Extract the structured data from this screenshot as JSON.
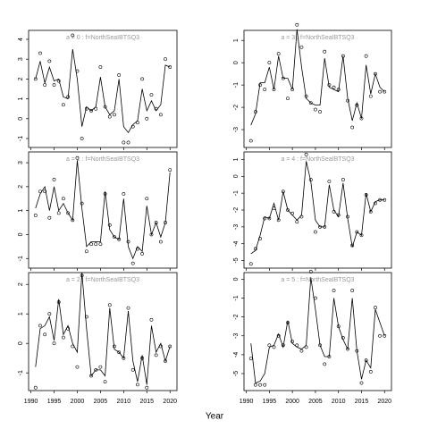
{
  "xlabel": "Year",
  "chart_data": [
    {
      "type": "scatter-line",
      "title": "a = 0 : f=NorthSeaIBTSQ3",
      "x": [
        1991,
        1992,
        1993,
        1994,
        1995,
        1996,
        1997,
        1998,
        1999,
        2000,
        2001,
        2002,
        2003,
        2004,
        2005,
        2006,
        2007,
        2008,
        2009,
        2010,
        2011,
        2012,
        2013,
        2014,
        2015,
        2016,
        2017,
        2018,
        2019,
        2020
      ],
      "series": [
        {
          "marker": "circle",
          "color": "#000000",
          "values": [
            2.0,
            3.3,
            1.7,
            2.9,
            1.7,
            1.9,
            0.7,
            1.1,
            4.2,
            2.4,
            -1.0,
            0.5,
            0.4,
            0.5,
            2.6,
            0.6,
            0.1,
            0.2,
            2.2,
            -1.2,
            -1.2,
            -0.4,
            -0.2,
            2.0,
            0.0,
            1.2,
            0.5,
            0.2,
            3.0,
            2.6
          ]
        },
        {
          "marker": "line",
          "color": "#000000",
          "values": [
            2.0,
            2.9,
            1.8,
            2.6,
            1.9,
            2.0,
            1.1,
            1.0,
            3.5,
            2.0,
            -0.4,
            0.6,
            0.4,
            0.6,
            2.1,
            0.6,
            0.2,
            0.4,
            2.0,
            -0.4,
            -0.7,
            -0.3,
            -0.1,
            1.5,
            0.4,
            0.9,
            0.4,
            0.7,
            2.7,
            2.6
          ]
        }
      ],
      "xlim": [
        1989.5,
        2021.5
      ],
      "xticks": [
        1990,
        1995,
        2000,
        2005,
        2010,
        2015,
        2020
      ],
      "ylim": [
        -1.45,
        4.45
      ],
      "yticks": [
        -1,
        0,
        1,
        2,
        3,
        4
      ]
    },
    {
      "type": "scatter-line",
      "title": "a = 3 : f=NorthSeaIBTSQ3",
      "x": [
        1991,
        1992,
        1993,
        1994,
        1995,
        1996,
        1997,
        1998,
        1999,
        2000,
        2001,
        2002,
        2003,
        2004,
        2005,
        2006,
        2007,
        2008,
        2009,
        2010,
        2011,
        2012,
        2013,
        2014,
        2015,
        2016,
        2017,
        2018,
        2019,
        2020
      ],
      "series": [
        {
          "marker": "circle",
          "color": "#000000",
          "values": [
            -3.5,
            -2.2,
            -1.0,
            -1.2,
            0.0,
            -1.2,
            0.4,
            -0.7,
            -1.6,
            -1.2,
            1.7,
            0.7,
            -1.5,
            -1.8,
            -2.1,
            -2.2,
            0.5,
            -1.0,
            -1.1,
            -1.2,
            0.3,
            -1.7,
            -2.9,
            -1.9,
            -2.5,
            0.3,
            -1.5,
            -0.5,
            -1.3,
            -1.3
          ]
        },
        {
          "marker": "line",
          "color": "#000000",
          "values": [
            -2.8,
            -2.3,
            -0.9,
            -0.9,
            -0.2,
            -1.2,
            0.3,
            -0.7,
            -0.7,
            -1.2,
            1.5,
            -0.2,
            -1.6,
            -1.8,
            -1.9,
            -1.9,
            0.2,
            -1.1,
            -1.2,
            -1.3,
            0.3,
            -1.6,
            -2.6,
            -1.8,
            -2.5,
            -0.1,
            -1.4,
            -0.5,
            -1.1,
            -1.3
          ]
        }
      ],
      "xlim": [
        1989.5,
        2021.5
      ],
      "xticks": [
        1990,
        1995,
        2000,
        2005,
        2010,
        2015,
        2020
      ],
      "ylim": [
        -3.8,
        1.45
      ],
      "yticks": [
        -3,
        -2,
        -1,
        0,
        1
      ]
    },
    {
      "type": "scatter-line",
      "title": "a = 1 : f=NorthSeaIBTSQ3",
      "x": [
        1991,
        1992,
        1993,
        1994,
        1995,
        1996,
        1997,
        1998,
        1999,
        2000,
        2001,
        2002,
        2003,
        2004,
        2005,
        2006,
        2007,
        2008,
        2009,
        2010,
        2011,
        2012,
        2013,
        2014,
        2015,
        2016,
        2017,
        2018,
        2019,
        2020
      ],
      "series": [
        {
          "marker": "circle",
          "color": "#000000",
          "values": [
            0.8,
            1.8,
            1.8,
            0.7,
            2.3,
            0.9,
            1.5,
            0.9,
            0.6,
            3.2,
            1.3,
            -0.7,
            -0.4,
            -0.4,
            -0.4,
            1.7,
            0.4,
            -0.1,
            -0.2,
            1.7,
            -0.3,
            -1.2,
            -0.6,
            -0.8,
            1.5,
            0.0,
            0.5,
            -0.3,
            0.5,
            2.7
          ]
        },
        {
          "marker": "line",
          "color": "#000000",
          "values": [
            1.1,
            1.7,
            2.0,
            1.0,
            2.0,
            1.0,
            1.3,
            0.9,
            0.6,
            3.1,
            1.1,
            -0.5,
            -0.3,
            -0.3,
            -0.3,
            1.8,
            0.2,
            -0.1,
            -0.2,
            1.5,
            -0.5,
            -1.0,
            -0.5,
            -0.7,
            1.2,
            0.0,
            0.5,
            -0.1,
            0.5,
            2.6
          ]
        }
      ],
      "xlim": [
        1989.5,
        2021.5
      ],
      "xticks": [
        1990,
        1995,
        2000,
        2005,
        2010,
        2015,
        2020
      ],
      "ylim": [
        -1.4,
        3.45
      ],
      "yticks": [
        -1,
        0,
        1,
        2,
        3
      ]
    },
    {
      "type": "scatter-line",
      "title": "a = 4 : f=NorthSeaIBTSQ3",
      "x": [
        1991,
        1992,
        1993,
        1994,
        1995,
        1996,
        1997,
        1998,
        1999,
        2000,
        2001,
        2002,
        2003,
        2004,
        2005,
        2006,
        2007,
        2008,
        2009,
        2010,
        2011,
        2012,
        2013,
        2014,
        2015,
        2016,
        2017,
        2018,
        2019,
        2020
      ],
      "series": [
        {
          "marker": "circle",
          "color": "#000000",
          "values": [
            -5.2,
            -4.3,
            -3.7,
            -2.5,
            -2.5,
            -1.9,
            -2.6,
            -0.9,
            -2.0,
            -2.2,
            -2.7,
            -2.4,
            1.3,
            -0.2,
            -3.3,
            -3.0,
            -3.0,
            -0.3,
            -2.1,
            -2.3,
            -0.2,
            -2.4,
            -4.1,
            -3.3,
            -3.5,
            -1.1,
            -2.1,
            -1.6,
            -1.4,
            -1.4
          ]
        },
        {
          "marker": "line",
          "color": "#000000",
          "values": [
            -4.6,
            -4.4,
            -3.5,
            -2.4,
            -2.5,
            -1.6,
            -2.6,
            -0.9,
            -2.0,
            -2.3,
            -2.6,
            -2.3,
            0.9,
            -0.3,
            -2.6,
            -3.0,
            -3.0,
            -0.5,
            -2.0,
            -2.4,
            -0.4,
            -2.5,
            -4.2,
            -3.3,
            -3.5,
            -1.0,
            -2.1,
            -1.5,
            -1.4,
            -1.4
          ]
        }
      ],
      "xlim": [
        1989.5,
        2021.5
      ],
      "xticks": [
        1990,
        1995,
        2000,
        2005,
        2010,
        2015,
        2020
      ],
      "ylim": [
        -5.45,
        1.45
      ],
      "yticks": [
        -5,
        -4,
        -3,
        -2,
        -1,
        0,
        1
      ]
    },
    {
      "type": "scatter-line",
      "title": "a = 2 : f=NorthSeaIBTSQ3",
      "x": [
        1991,
        1992,
        1993,
        1994,
        1995,
        1996,
        1997,
        1998,
        1999,
        2000,
        2001,
        2002,
        2003,
        2004,
        2005,
        2006,
        2007,
        2008,
        2009,
        2010,
        2011,
        2012,
        2013,
        2014,
        2015,
        2016,
        2017,
        2018,
        2019,
        2020
      ],
      "series": [
        {
          "marker": "circle",
          "color": "#000000",
          "values": [
            -1.5,
            0.6,
            0.3,
            1.0,
            0.0,
            1.4,
            0.2,
            0.5,
            -0.1,
            -0.8,
            2.3,
            0.9,
            -1.1,
            -0.9,
            -0.8,
            -1.3,
            1.3,
            -0.1,
            -0.3,
            -0.5,
            1.2,
            -0.9,
            -1.4,
            -0.5,
            -1.5,
            0.8,
            -0.4,
            -0.1,
            -0.6,
            -0.1
          ]
        },
        {
          "marker": "line",
          "color": "#000000",
          "values": [
            -0.8,
            0.5,
            0.6,
            0.9,
            0.1,
            1.5,
            0.3,
            0.6,
            0.0,
            -0.3,
            2.4,
            0.5,
            -1.1,
            -0.9,
            -0.9,
            -1.1,
            1.2,
            -0.2,
            -0.3,
            -0.5,
            1.1,
            -0.6,
            -1.3,
            -0.4,
            -1.4,
            0.6,
            -0.3,
            0.0,
            -0.6,
            -0.1
          ]
        }
      ],
      "xlim": [
        1989.5,
        2021.5
      ],
      "xticks": [
        1990,
        1995,
        2000,
        2005,
        2010,
        2015,
        2020
      ],
      "ylim": [
        -1.6,
        2.4
      ],
      "yticks": [
        -1,
        0,
        1,
        2
      ]
    },
    {
      "type": "scatter-line",
      "title": "a = 5 : f=NorthSeaIBTSQ3",
      "x": [
        1991,
        1992,
        1993,
        1994,
        1995,
        1996,
        1997,
        1998,
        1999,
        2000,
        2001,
        2002,
        2003,
        2004,
        2005,
        2006,
        2007,
        2008,
        2009,
        2010,
        2011,
        2012,
        2013,
        2014,
        2015,
        2016,
        2017,
        2018,
        2019,
        2020
      ],
      "series": [
        {
          "marker": "circle",
          "color": "#000000",
          "values": [
            -4.2,
            -5.6,
            -5.6,
            -5.6,
            -3.5,
            -3.6,
            -3.0,
            -3.5,
            -2.3,
            -3.3,
            -3.5,
            -3.8,
            -3.6,
            0.4,
            -1.0,
            -3.5,
            -4.5,
            -4.1,
            -0.6,
            -2.5,
            -3.1,
            -3.7,
            -0.6,
            -3.8,
            -5.5,
            -4.3,
            -4.9,
            -1.5,
            -3.0,
            -3.0
          ]
        },
        {
          "marker": "line",
          "color": "#000000",
          "values": [
            -3.4,
            -5.5,
            -5.4,
            -5.0,
            -3.6,
            -3.5,
            -2.9,
            -3.6,
            -2.2,
            -3.4,
            -3.6,
            -3.7,
            -3.5,
            0.1,
            -1.6,
            -3.5,
            -4.1,
            -4.1,
            -1.0,
            -2.5,
            -3.2,
            -3.7,
            -1.0,
            -3.8,
            -5.3,
            -4.3,
            -4.7,
            -1.6,
            -2.3,
            -3.0
          ]
        }
      ],
      "xlim": [
        1989.5,
        2021.5
      ],
      "xticks": [
        1990,
        1995,
        2000,
        2005,
        2010,
        2015,
        2020
      ],
      "ylim": [
        -5.9,
        0.35
      ],
      "yticks": [
        -5,
        -4,
        -3,
        -2,
        -1,
        0
      ]
    }
  ]
}
